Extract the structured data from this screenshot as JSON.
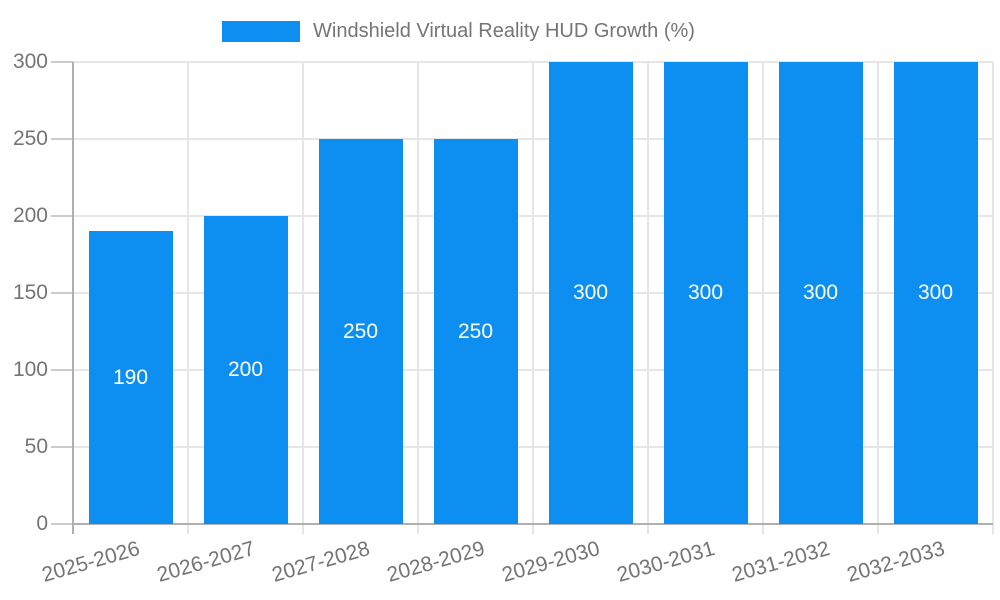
{
  "legend": {
    "position": "top",
    "label": "Windshield Virtual Reality HUD Growth (%)"
  },
  "chart_data": {
    "type": "bar",
    "title": "Windshield Virtual Reality HUD Growth (%)",
    "categories": [
      "2025-2026",
      "2026-2027",
      "2027-2028",
      "2028-2029",
      "2029-2030",
      "2030-2031",
      "2031-2032",
      "2032-2033"
    ],
    "series": [
      {
        "name": "Windshield Virtual Reality HUD Growth (%)",
        "values": [
          190,
          200,
          250,
          250,
          300,
          300,
          300,
          300
        ]
      }
    ],
    "xlabel": "",
    "ylabel": "",
    "ylim": [
      0,
      300
    ],
    "yticks": [
      0,
      50,
      100,
      150,
      200,
      250,
      300
    ],
    "grid": true,
    "legend_position": "top",
    "value_labels_shown": true,
    "colors": {
      "bar": "#0d8ff2",
      "legend_text": "#757575",
      "axis_text": "#757575",
      "grid_line": "#e6e6e6",
      "axis_line": "#b0b0b0",
      "tick_mark": "#cccccc",
      "value_label": "#ffffff",
      "background": "#ffffff"
    }
  }
}
